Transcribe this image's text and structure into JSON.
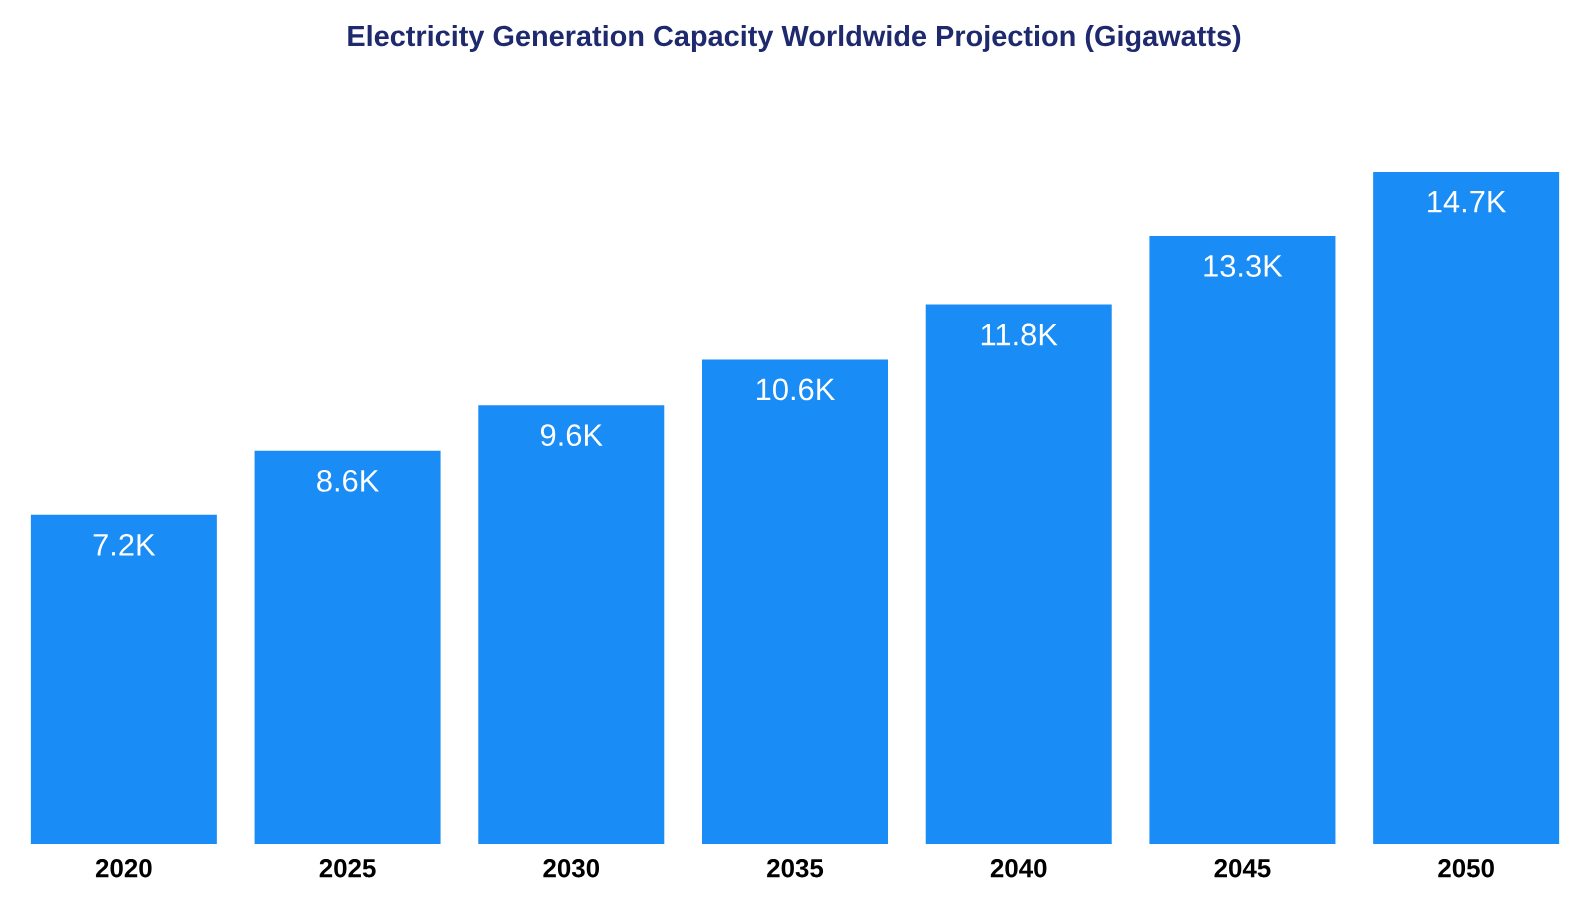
{
  "chart_data": {
    "type": "bar",
    "title": "Electricity Generation Capacity Worldwide Projection (Gigawatts)",
    "categories": [
      "2020",
      "2025",
      "2030",
      "2035",
      "2040",
      "2045",
      "2050"
    ],
    "values": [
      7200,
      8600,
      9600,
      10600,
      11800,
      13300,
      14700
    ],
    "value_labels": [
      "7.2K",
      "8.6K",
      "9.6K",
      "10.6K",
      "11.8K",
      "13.3K",
      "14.7K"
    ],
    "color": "#1a8cf5"
  }
}
